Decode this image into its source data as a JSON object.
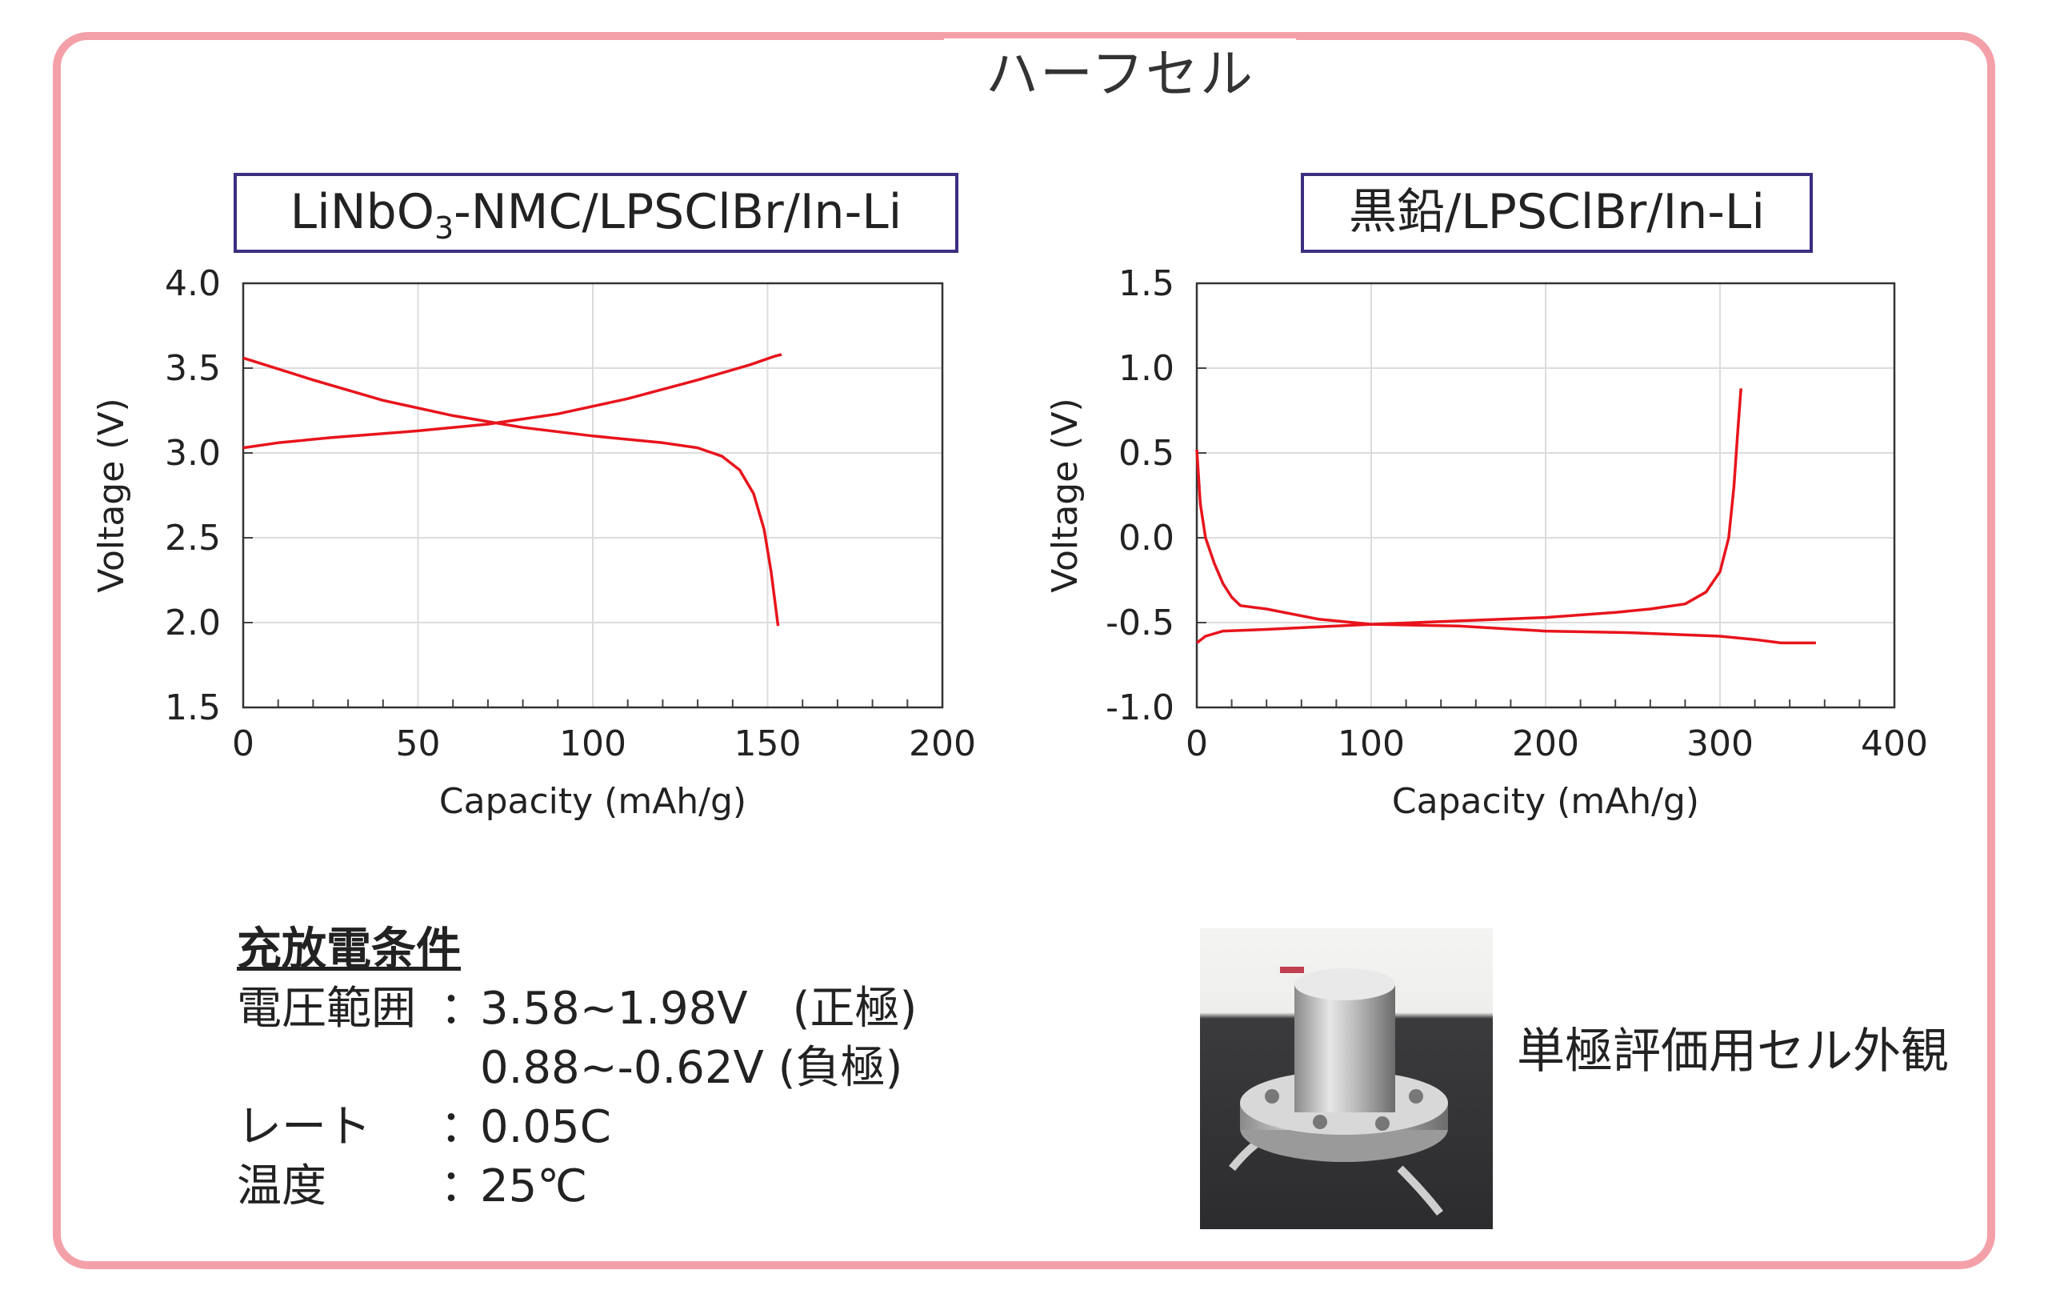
{
  "frame": {
    "title": "ハーフセル",
    "border_color": "#f4a0a8"
  },
  "chart_data": [
    {
      "type": "line",
      "title": "LiNbO3-NMC/LPSClBr/In-Li",
      "title_parts": {
        "before": "LiNbO",
        "sub": "3",
        "after": "-NMC/LPSClBr/In-Li"
      },
      "xlabel": "Capacity (mAh/g)",
      "ylabel": "Voltage (V)",
      "xlim": [
        0,
        200
      ],
      "ylim": [
        1.5,
        4.0
      ],
      "xticks": [
        "0",
        "50",
        "100",
        "150",
        "200"
      ],
      "yticks": [
        "1.5",
        "2.0",
        "2.5",
        "3.0",
        "3.5",
        "4.0"
      ],
      "grid": true,
      "line_color": "#e8141c",
      "series": [
        {
          "values": [
            [
              0,
              3.03
            ],
            [
              10,
              3.06
            ],
            [
              25,
              3.09
            ],
            [
              50,
              3.13
            ],
            [
              70,
              3.17
            ],
            [
              90,
              3.23
            ],
            [
              110,
              3.32
            ],
            [
              130,
              3.43
            ],
            [
              145,
              3.52
            ],
            [
              152,
              3.57
            ],
            [
              154,
              3.58
            ]
          ]
        },
        {
          "values": [
            [
              0,
              3.56
            ],
            [
              20,
              3.43
            ],
            [
              40,
              3.31
            ],
            [
              60,
              3.22
            ],
            [
              80,
              3.15
            ],
            [
              100,
              3.1
            ],
            [
              120,
              3.06
            ],
            [
              130,
              3.03
            ],
            [
              137,
              2.98
            ],
            [
              142,
              2.9
            ],
            [
              146,
              2.76
            ],
            [
              149,
              2.55
            ],
            [
              151,
              2.3
            ],
            [
              153,
              1.98
            ]
          ]
        }
      ]
    },
    {
      "type": "line",
      "title": "黒鉛/LPSClBr/In-Li",
      "xlabel": "Capacity (mAh/g)",
      "ylabel": "Voltage (V)",
      "xlim": [
        0,
        400
      ],
      "ylim": [
        -1.0,
        1.5
      ],
      "xticks": [
        "0",
        "100",
        "200",
        "300",
        "400"
      ],
      "yticks": [
        "-1.0",
        "-0.5",
        "0.0",
        "0.5",
        "1.0",
        "1.5"
      ],
      "grid": true,
      "line_color": "#e8141c",
      "series": [
        {
          "values": [
            [
              0,
              -0.62
            ],
            [
              5,
              -0.58
            ],
            [
              15,
              -0.55
            ],
            [
              40,
              -0.54
            ],
            [
              80,
              -0.52
            ],
            [
              100,
              -0.51
            ],
            [
              150,
              -0.49
            ],
            [
              200,
              -0.47
            ],
            [
              240,
              -0.44
            ],
            [
              260,
              -0.42
            ],
            [
              280,
              -0.39
            ],
            [
              292,
              -0.32
            ],
            [
              300,
              -0.2
            ],
            [
              305,
              0.0
            ],
            [
              308,
              0.3
            ],
            [
              310,
              0.6
            ],
            [
              312,
              0.88
            ]
          ]
        },
        {
          "values": [
            [
              0,
              0.52
            ],
            [
              2,
              0.2
            ],
            [
              5,
              0.0
            ],
            [
              10,
              -0.15
            ],
            [
              15,
              -0.27
            ],
            [
              20,
              -0.35
            ],
            [
              25,
              -0.4
            ],
            [
              40,
              -0.42
            ],
            [
              70,
              -0.48
            ],
            [
              100,
              -0.51
            ],
            [
              150,
              -0.52
            ],
            [
              200,
              -0.55
            ],
            [
              250,
              -0.56
            ],
            [
              300,
              -0.58
            ],
            [
              320,
              -0.6
            ],
            [
              335,
              -0.62
            ],
            [
              355,
              -0.62
            ]
          ]
        }
      ]
    }
  ],
  "conditions": {
    "heading": "充放電条件",
    "colon": "：",
    "rows": [
      {
        "label": "電圧範囲",
        "value": "3.58~1.98V　(正極)"
      },
      {
        "label": "",
        "value": "0.88~-0.62V (負極)"
      },
      {
        "label": "レート",
        "value": "0.05C"
      },
      {
        "label": "温度",
        "value": "25℃"
      }
    ]
  },
  "photo": {
    "caption": "単極評価用セル外観"
  }
}
